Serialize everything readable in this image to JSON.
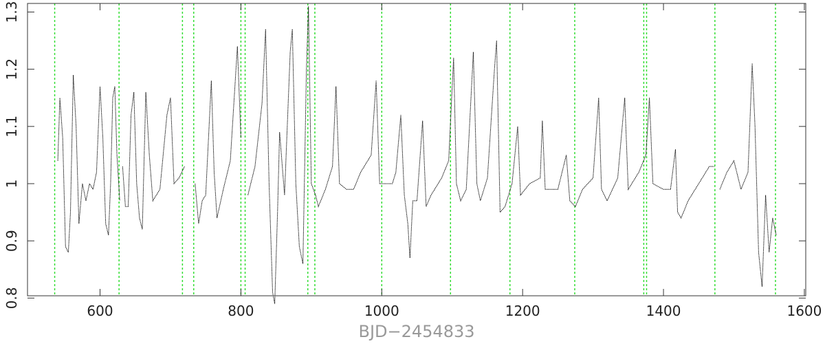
{
  "chart_data": {
    "type": "line",
    "x_label": "BJD−2454833",
    "xlim": [
      497,
      1602
    ],
    "ylim": [
      0.804,
      1.315
    ],
    "xticks": [
      600,
      800,
      1000,
      1200,
      1400,
      1600
    ],
    "yticks": [
      0.8,
      0.9,
      1,
      1.1,
      1.2,
      1.3
    ],
    "vlines": [
      535.6,
      627,
      717,
      733,
      800,
      806,
      895,
      905,
      1000,
      1097.6,
      1182,
      1274,
      1372,
      1376,
      1473,
      1559
    ],
    "vline_color": "#33dd33",
    "series": [
      {
        "color": "#111111",
        "x": [
          540,
          543,
          547,
          551,
          555,
          558,
          562,
          566,
          570,
          575,
          580,
          585,
          590,
          595,
          600,
          604,
          608,
          612,
          615,
          618,
          621,
          624,
          628,
          630,
          632,
          636,
          640,
          644,
          648,
          652,
          656,
          660,
          665,
          670,
          675,
          685,
          695,
          700,
          705,
          712,
          720,
          727,
          735,
          740,
          745,
          750,
          758,
          762,
          766,
          775,
          785,
          795,
          800,
          805,
          810,
          820,
          830,
          835,
          840,
          845,
          848,
          852,
          855,
          862,
          870,
          873,
          878,
          883,
          888,
          893,
          896,
          900,
          906,
          910,
          920,
          930,
          935,
          940,
          950,
          960,
          970,
          985,
          992,
          997,
          1005,
          1015,
          1020,
          1027,
          1032,
          1037,
          1040,
          1044,
          1050,
          1058,
          1063,
          1070,
          1085,
          1095,
          1102,
          1106,
          1112,
          1120,
          1130,
          1135,
          1140,
          1150,
          1160,
          1163,
          1168,
          1175,
          1185,
          1193,
          1197,
          1210,
          1225,
          1228,
          1232,
          1250,
          1262,
          1267,
          1275,
          1285,
          1300,
          1308,
          1312,
          1320,
          1335,
          1345,
          1350,
          1365,
          1375,
          1380,
          1385,
          1400,
          1410,
          1417,
          1420,
          1425,
          1435,
          1450,
          1465,
          1472,
          1476,
          1480,
          1490,
          1500,
          1510,
          1520,
          1526,
          1530,
          1535,
          1540,
          1545,
          1550,
          1555,
          1560
        ],
        "values": [
          1.04,
          1.15,
          1.08,
          0.89,
          0.88,
          0.95,
          1.19,
          1.1,
          0.93,
          1.0,
          0.97,
          1.0,
          0.99,
          1.02,
          1.17,
          1.08,
          0.93,
          0.91,
          1.0,
          1.15,
          1.17,
          1.05,
          0.97,
          null,
          1.03,
          0.96,
          0.96,
          1.12,
          1.16,
          1.0,
          0.94,
          0.92,
          1.16,
          1.05,
          0.97,
          0.99,
          1.12,
          1.15,
          1.0,
          1.01,
          1.03,
          null,
          1.0,
          0.93,
          0.97,
          0.98,
          1.18,
          1.02,
          0.94,
          0.99,
          1.04,
          1.24,
          1.08,
          null,
          0.98,
          1.03,
          1.14,
          1.27,
          1.0,
          0.81,
          0.79,
          0.95,
          1.09,
          0.98,
          1.23,
          1.27,
          1.0,
          0.89,
          0.86,
          1.2,
          1.31,
          1.0,
          0.98,
          0.96,
          0.99,
          1.03,
          1.17,
          1.0,
          0.99,
          0.99,
          1.02,
          1.05,
          1.18,
          1.0,
          1.0,
          1.0,
          1.02,
          1.12,
          0.98,
          0.93,
          0.87,
          0.97,
          0.97,
          1.11,
          0.96,
          0.98,
          1.01,
          1.04,
          1.22,
          1.0,
          0.97,
          0.99,
          1.23,
          1.0,
          0.97,
          1.01,
          1.2,
          1.25,
          0.95,
          0.96,
          1.0,
          1.1,
          0.98,
          1.0,
          1.01,
          1.11,
          0.99,
          0.99,
          1.05,
          0.97,
          0.96,
          0.99,
          1.01,
          1.15,
          0.99,
          0.97,
          1.01,
          1.15,
          0.99,
          1.02,
          1.05,
          1.15,
          1.0,
          0.99,
          0.99,
          1.06,
          0.95,
          0.94,
          0.97,
          1.0,
          1.03,
          1.03,
          null,
          0.99,
          1.02,
          1.04,
          0.99,
          1.02,
          1.21,
          1.1,
          0.88,
          0.82,
          0.98,
          0.88,
          0.94,
          0.91
        ]
      }
    ]
  }
}
